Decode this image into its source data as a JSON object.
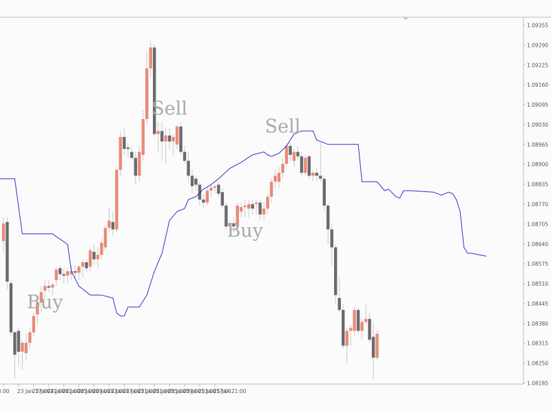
{
  "chart_data": {
    "type": "candlestick",
    "title": "",
    "colors": {
      "bullish": "#e98a79",
      "bearish": "#6a6a6e",
      "wick": "#c8c8c8",
      "trend_line": "#2b2fc9",
      "signal_text": "#a9a9a9",
      "axis_line": "#bdbdbd",
      "tick_text": "#555555"
    },
    "ylim": [
      1.08185,
      1.09385
    ],
    "y_ticks": [
      "1.09355",
      "1.09290",
      "1.09225",
      "1.09160",
      "1.09095",
      "1.09030",
      "1.08965",
      "1.08900",
      "1.08835",
      "1.08770",
      "1.08705",
      "1.08640",
      "1.08575",
      "1.08510",
      "1.08445",
      "1.08380",
      "1.08315",
      "1.08250",
      "1.08185"
    ],
    "x_ticks": [
      {
        "index": 0,
        "label": "13:00"
      },
      {
        "index": 4,
        "label": "23 Jan 17:00"
      },
      {
        "index": 8,
        "label": "23 Jan 21:00"
      },
      {
        "index": 12,
        "label": "24 Jan 01:00"
      },
      {
        "index": 16,
        "label": "24 Jan 05:00"
      },
      {
        "index": 20,
        "label": "24 Jan 09:00"
      },
      {
        "index": 24,
        "label": "24 Jan 13:00"
      },
      {
        "index": 28,
        "label": "24 Jan 17:00"
      },
      {
        "index": 32,
        "label": "24 Jan 21:00"
      },
      {
        "index": 36,
        "label": "25 Jan 01:00"
      },
      {
        "index": 40,
        "label": "25 Jan 05:00"
      },
      {
        "index": 44,
        "label": "25 Jan 09:00"
      },
      {
        "index": 48,
        "label": "25 Jan 13:00"
      },
      {
        "index": 52,
        "label": "25 Jan 17:00"
      },
      {
        "index": 56,
        "label": "25 Jan 21:00"
      }
    ],
    "candles": [
      {
        "o": 1.08661,
        "h": 1.0874,
        "l": 1.0862,
        "c": 1.0872
      },
      {
        "o": 1.08725,
        "h": 1.0874,
        "l": 1.085,
        "c": 1.08525
      },
      {
        "o": 1.0852,
        "h": 1.0853,
        "l": 1.0834,
        "c": 1.08355
      },
      {
        "o": 1.08355,
        "h": 1.0836,
        "l": 1.082,
        "c": 1.0828
      },
      {
        "o": 1.0836,
        "h": 1.0837,
        "l": 1.0824,
        "c": 1.0829
      },
      {
        "o": 1.0829,
        "h": 1.0833,
        "l": 1.0823,
        "c": 1.0832
      },
      {
        "o": 1.08285,
        "h": 1.0835,
        "l": 1.0826,
        "c": 1.0832
      },
      {
        "o": 1.0832,
        "h": 1.0837,
        "l": 1.083,
        "c": 1.08355
      },
      {
        "o": 1.08355,
        "h": 1.0842,
        "l": 1.0834,
        "c": 1.0841
      },
      {
        "o": 1.08415,
        "h": 1.0847,
        "l": 1.0838,
        "c": 1.08455
      },
      {
        "o": 1.08455,
        "h": 1.0851,
        "l": 1.0842,
        "c": 1.0849
      },
      {
        "o": 1.08495,
        "h": 1.0853,
        "l": 1.0847,
        "c": 1.0851
      },
      {
        "o": 1.0851,
        "h": 1.0853,
        "l": 1.0849,
        "c": 1.08505
      },
      {
        "o": 1.08505,
        "h": 1.0852,
        "l": 1.0848,
        "c": 1.08515
      },
      {
        "o": 1.0853,
        "h": 1.08575,
        "l": 1.0851,
        "c": 1.08565
      },
      {
        "o": 1.0857,
        "h": 1.0858,
        "l": 1.0853,
        "c": 1.0855
      },
      {
        "o": 1.0855,
        "h": 1.0857,
        "l": 1.0852,
        "c": 1.08545
      },
      {
        "o": 1.08545,
        "h": 1.0857,
        "l": 1.0852,
        "c": 1.0856
      },
      {
        "o": 1.0855,
        "h": 1.0858,
        "l": 1.0853,
        "c": 1.0856
      },
      {
        "o": 1.0856,
        "h": 1.0858,
        "l": 1.08535,
        "c": 1.08555
      },
      {
        "o": 1.08555,
        "h": 1.0858,
        "l": 1.0853,
        "c": 1.08575
      },
      {
        "o": 1.08575,
        "h": 1.086,
        "l": 1.0854,
        "c": 1.0859
      },
      {
        "o": 1.0859,
        "h": 1.086,
        "l": 1.0856,
        "c": 1.0857
      },
      {
        "o": 1.08575,
        "h": 1.0864,
        "l": 1.0856,
        "c": 1.0863
      },
      {
        "o": 1.08625,
        "h": 1.0865,
        "l": 1.0858,
        "c": 1.086
      },
      {
        "o": 1.086,
        "h": 1.0864,
        "l": 1.0857,
        "c": 1.08615
      },
      {
        "o": 1.08615,
        "h": 1.0867,
        "l": 1.086,
        "c": 1.08655
      },
      {
        "o": 1.0864,
        "h": 1.08715,
        "l": 1.0863,
        "c": 1.08705
      },
      {
        "o": 1.08705,
        "h": 1.0877,
        "l": 1.0869,
        "c": 1.0873
      },
      {
        "o": 1.08725,
        "h": 1.0876,
        "l": 1.0868,
        "c": 1.087
      },
      {
        "o": 1.087,
        "h": 1.0891,
        "l": 1.0869,
        "c": 1.089
      },
      {
        "o": 1.089,
        "h": 1.0903,
        "l": 1.0888,
        "c": 1.0901
      },
      {
        "o": 1.0901,
        "h": 1.0904,
        "l": 1.0895,
        "c": 1.0897
      },
      {
        "o": 1.08975,
        "h": 1.0899,
        "l": 1.0894,
        "c": 1.0897
      },
      {
        "o": 1.0896,
        "h": 1.0898,
        "l": 1.0893,
        "c": 1.0894
      },
      {
        "o": 1.0894,
        "h": 1.0896,
        "l": 1.0885,
        "c": 1.0888
      },
      {
        "o": 1.0888,
        "h": 1.0898,
        "l": 1.0886,
        "c": 1.0896
      },
      {
        "o": 1.0895,
        "h": 1.091,
        "l": 1.0893,
        "c": 1.0907
      },
      {
        "o": 1.0907,
        "h": 1.093,
        "l": 1.0905,
        "c": 1.0924
      },
      {
        "o": 1.0924,
        "h": 1.0933,
        "l": 1.0921,
        "c": 1.0931
      },
      {
        "o": 1.0931,
        "h": 1.0932,
        "l": 1.0901,
        "c": 1.0902
      },
      {
        "o": 1.0902,
        "h": 1.0906,
        "l": 1.0896,
        "c": 1.0903
      },
      {
        "o": 1.0903,
        "h": 1.0906,
        "l": 1.0893,
        "c": 1.08995
      },
      {
        "o": 1.08995,
        "h": 1.0904,
        "l": 1.0892,
        "c": 1.09015
      },
      {
        "o": 1.09015,
        "h": 1.0904,
        "l": 1.0897,
        "c": 1.08995
      },
      {
        "o": 1.08995,
        "h": 1.0902,
        "l": 1.0895,
        "c": 1.0901
      },
      {
        "o": 1.08985,
        "h": 1.0905,
        "l": 1.0897,
        "c": 1.09045
      },
      {
        "o": 1.09045,
        "h": 1.0906,
        "l": 1.0895,
        "c": 1.0896
      },
      {
        "o": 1.0896,
        "h": 1.0898,
        "l": 1.0892,
        "c": 1.0893
      },
      {
        "o": 1.0893,
        "h": 1.0896,
        "l": 1.0886,
        "c": 1.0888
      },
      {
        "o": 1.0888,
        "h": 1.089,
        "l": 1.0882,
        "c": 1.08845
      },
      {
        "o": 1.0887,
        "h": 1.0888,
        "l": 1.0883,
        "c": 1.0885
      },
      {
        "o": 1.0885,
        "h": 1.0886,
        "l": 1.0878,
        "c": 1.088
      },
      {
        "o": 1.088,
        "h": 1.0882,
        "l": 1.0877,
        "c": 1.0879
      },
      {
        "o": 1.0879,
        "h": 1.0884,
        "l": 1.0878,
        "c": 1.0883
      },
      {
        "o": 1.0883,
        "h": 1.0885,
        "l": 1.0881,
        "c": 1.0884
      },
      {
        "o": 1.0884,
        "h": 1.0885,
        "l": 1.0882,
        "c": 1.08845
      },
      {
        "o": 1.0885,
        "h": 1.0886,
        "l": 1.0881,
        "c": 1.0882
      },
      {
        "o": 1.08825,
        "h": 1.0884,
        "l": 1.0877,
        "c": 1.0878
      },
      {
        "o": 1.0878,
        "h": 1.0879,
        "l": 1.087,
        "c": 1.0871
      },
      {
        "o": 1.0871,
        "h": 1.0873,
        "l": 1.0869,
        "c": 1.0872
      },
      {
        "o": 1.0872,
        "h": 1.0874,
        "l": 1.0869,
        "c": 1.0871
      },
      {
        "o": 1.0871,
        "h": 1.0879,
        "l": 1.087,
        "c": 1.0878
      },
      {
        "o": 1.0876,
        "h": 1.0879,
        "l": 1.0874,
        "c": 1.08775
      },
      {
        "o": 1.08775,
        "h": 1.088,
        "l": 1.0874,
        "c": 1.0878
      },
      {
        "o": 1.0877,
        "h": 1.088,
        "l": 1.0874,
        "c": 1.08785
      },
      {
        "o": 1.08785,
        "h": 1.088,
        "l": 1.0875,
        "c": 1.0877
      },
      {
        "o": 1.08785,
        "h": 1.088,
        "l": 1.0875,
        "c": 1.0879
      },
      {
        "o": 1.0879,
        "h": 1.088,
        "l": 1.0873,
        "c": 1.0875
      },
      {
        "o": 1.0875,
        "h": 1.0879,
        "l": 1.0873,
        "c": 1.0877
      },
      {
        "o": 1.0877,
        "h": 1.0882,
        "l": 1.0875,
        "c": 1.0881
      },
      {
        "o": 1.0881,
        "h": 1.0887,
        "l": 1.0879,
        "c": 1.0886
      },
      {
        "o": 1.0886,
        "h": 1.089,
        "l": 1.0884,
        "c": 1.0888
      },
      {
        "o": 1.0886,
        "h": 1.0891,
        "l": 1.0884,
        "c": 1.0889
      },
      {
        "o": 1.0889,
        "h": 1.0894,
        "l": 1.0887,
        "c": 1.0892
      },
      {
        "o": 1.0892,
        "h": 1.0899,
        "l": 1.0891,
        "c": 1.0898
      },
      {
        "o": 1.0898,
        "h": 1.0899,
        "l": 1.0893,
        "c": 1.0895
      },
      {
        "o": 1.0893,
        "h": 1.0897,
        "l": 1.0891,
        "c": 1.0896
      },
      {
        "o": 1.0896,
        "h": 1.0898,
        "l": 1.0893,
        "c": 1.08945
      },
      {
        "o": 1.08945,
        "h": 1.0896,
        "l": 1.0888,
        "c": 1.0889
      },
      {
        "o": 1.0889,
        "h": 1.0895,
        "l": 1.0888,
        "c": 1.0894
      },
      {
        "o": 1.08945,
        "h": 1.0895,
        "l": 1.0887,
        "c": 1.0888
      },
      {
        "o": 1.0888,
        "h": 1.089,
        "l": 1.0886,
        "c": 1.0889
      },
      {
        "o": 1.0889,
        "h": 1.08905,
        "l": 1.0886,
        "c": 1.0888
      },
      {
        "o": 1.0888,
        "h": 1.0899,
        "l": 1.0886,
        "c": 1.0887
      },
      {
        "o": 1.0887,
        "h": 1.0888,
        "l": 1.0876,
        "c": 1.0878
      },
      {
        "o": 1.0878,
        "h": 1.0879,
        "l": 1.0865,
        "c": 1.087
      },
      {
        "o": 1.087,
        "h": 1.0872,
        "l": 1.0858,
        "c": 1.0864
      },
      {
        "o": 1.0864,
        "h": 1.0865,
        "l": 1.0845,
        "c": 1.0848
      },
      {
        "o": 1.0847,
        "h": 1.0854,
        "l": 1.0842,
        "c": 1.0843
      },
      {
        "o": 1.0843,
        "h": 1.0845,
        "l": 1.083,
        "c": 1.0831
      },
      {
        "o": 1.0831,
        "h": 1.0837,
        "l": 1.0825,
        "c": 1.0836
      },
      {
        "o": 1.0836,
        "h": 1.0838,
        "l": 1.0831,
        "c": 1.0837
      },
      {
        "o": 1.0836,
        "h": 1.0844,
        "l": 1.0834,
        "c": 1.0843
      },
      {
        "o": 1.0843,
        "h": 1.0844,
        "l": 1.0835,
        "c": 1.0836
      },
      {
        "o": 1.0836,
        "h": 1.084,
        "l": 1.0833,
        "c": 1.0839
      },
      {
        "o": 1.0839,
        "h": 1.0845,
        "l": 1.0838,
        "c": 1.084
      },
      {
        "o": 1.084,
        "h": 1.0842,
        "l": 1.0832,
        "c": 1.0833
      },
      {
        "o": 1.0834,
        "h": 1.0839,
        "l": 1.082,
        "c": 1.0827
      },
      {
        "o": 1.0827,
        "h": 1.0836,
        "l": 1.0826,
        "c": 1.0835
      }
    ],
    "trend_line": [
      [
        -1,
        1.0887
      ],
      [
        3,
        1.0887
      ],
      [
        5,
        1.08685
      ],
      [
        13,
        1.08685
      ],
      [
        17,
        1.0865
      ],
      [
        18,
        1.0856
      ],
      [
        20,
        1.0851
      ],
      [
        21,
        1.085
      ],
      [
        23,
        1.0848
      ],
      [
        26,
        1.0848
      ],
      [
        29,
        1.0847
      ],
      [
        30,
        1.0842
      ],
      [
        31,
        1.0841
      ],
      [
        32,
        1.0841
      ],
      [
        33,
        1.0844
      ],
      [
        36,
        1.0844
      ],
      [
        38,
        1.0848
      ],
      [
        40,
        1.0856
      ],
      [
        42,
        1.0862
      ],
      [
        44,
        1.0873
      ],
      [
        46,
        1.0876
      ],
      [
        48,
        1.0877
      ],
      [
        49,
        1.088
      ],
      [
        51,
        1.0881
      ],
      [
        53,
        1.08835
      ],
      [
        55,
        1.0885
      ],
      [
        57,
        1.0887
      ],
      [
        60,
        1.08905
      ],
      [
        63,
        1.08925
      ],
      [
        66,
        1.0895
      ],
      [
        69,
        1.0896
      ],
      [
        70,
        1.0895
      ],
      [
        71,
        1.08945
      ],
      [
        73,
        1.08955
      ],
      [
        75,
        1.0898
      ],
      [
        77,
        1.0902
      ],
      [
        79,
        1.0903
      ],
      [
        82,
        1.0903
      ],
      [
        83,
        1.09
      ],
      [
        86,
        1.08985
      ],
      [
        94,
        1.08985
      ],
      [
        95,
        1.0886
      ],
      [
        99,
        1.0886
      ],
      [
        101,
        1.0883
      ],
      [
        102,
        1.08835
      ],
      [
        104,
        1.0881
      ],
      [
        105,
        1.08805
      ],
      [
        106,
        1.0883
      ],
      [
        108,
        1.0883
      ],
      [
        114,
        1.08825
      ],
      [
        116,
        1.08815
      ],
      [
        117,
        1.0882
      ],
      [
        118,
        1.08825
      ],
      [
        119,
        1.0882
      ],
      [
        120,
        1.088
      ],
      [
        121,
        1.0876
      ],
      [
        122,
        1.0864
      ],
      [
        123,
        1.0862
      ],
      [
        124,
        1.0862
      ],
      [
        128,
        1.0861
      ]
    ],
    "signals": [
      {
        "label": "Buy",
        "type": "buy",
        "index": 11,
        "price": 1.08435
      },
      {
        "label": "Sell",
        "type": "sell",
        "index": 44,
        "price": 1.09085
      },
      {
        "label": "Buy",
        "type": "buy",
        "index": 64,
        "price": 1.08675
      },
      {
        "label": "Sell",
        "type": "sell",
        "index": 74,
        "price": 1.09025
      }
    ]
  }
}
